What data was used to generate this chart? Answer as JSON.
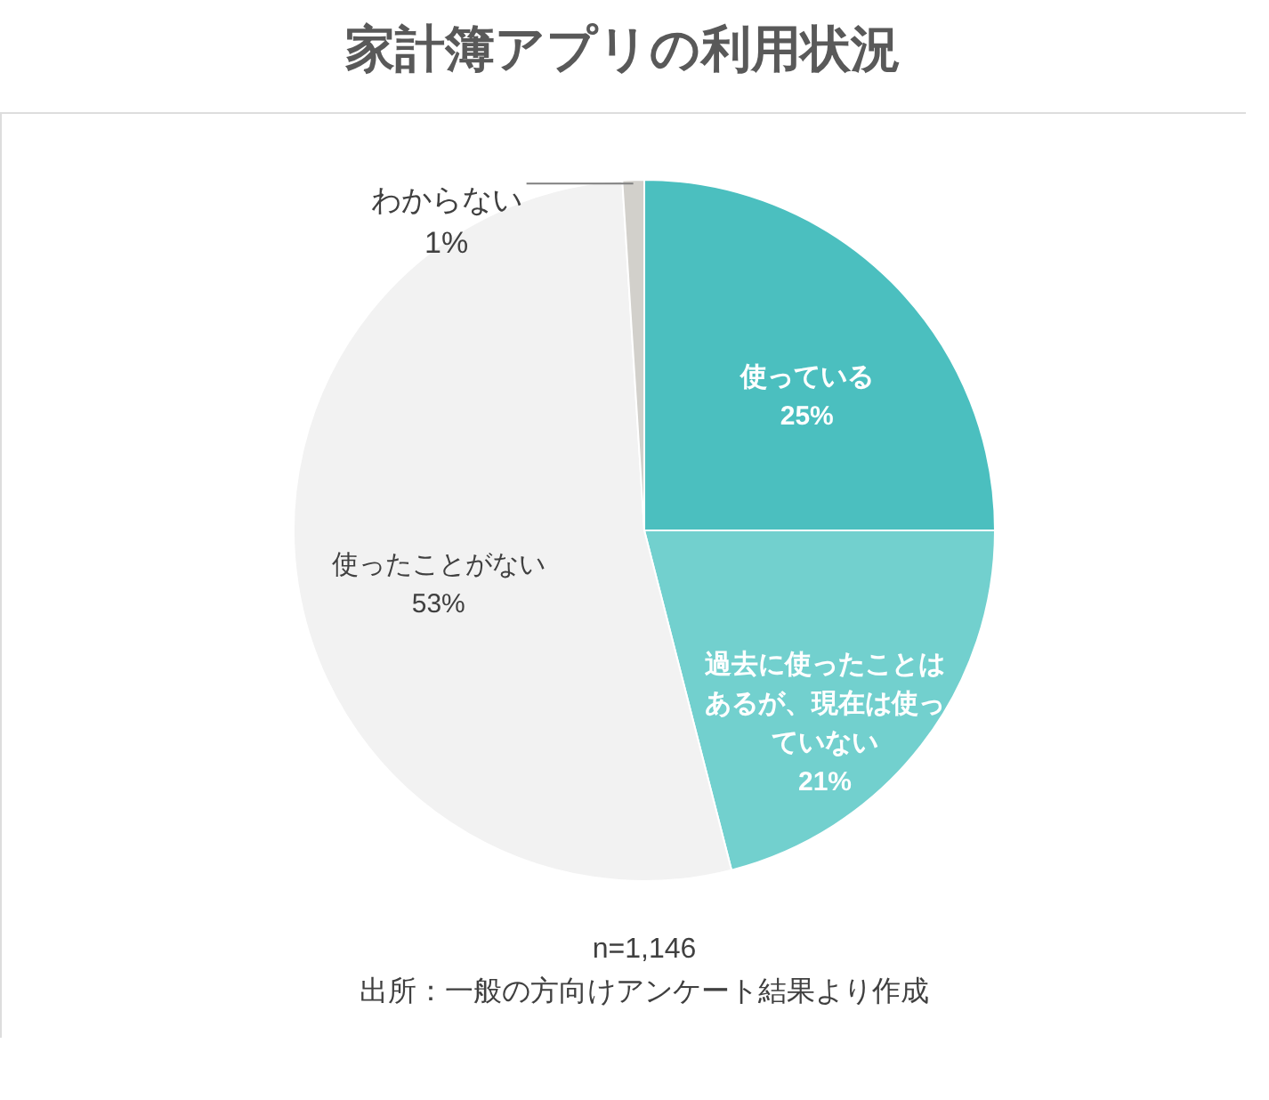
{
  "chart_data": {
    "type": "pie",
    "title": "家計簿アプリの利用状況",
    "categories": [
      "使っている",
      "過去に使ったことはあるが、現在は使っていない",
      "使ったことがない",
      "わからない"
    ],
    "values": [
      25,
      21,
      53,
      1
    ],
    "value_labels": [
      "25%",
      "21%",
      "53%",
      "1%"
    ],
    "colors": [
      "#4bbfbf",
      "#72d0ce",
      "#f2f2f2",
      "#d2d0cb"
    ],
    "annotations": [
      "n=1,146",
      "出所：一般の方向けアンケート結果より作成"
    ]
  }
}
